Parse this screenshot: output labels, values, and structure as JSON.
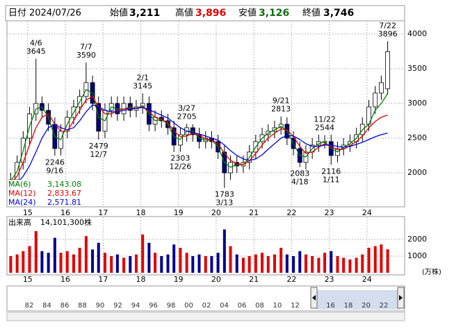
{
  "header": {
    "date_label": "日付",
    "date": "2024/07/26",
    "open_label": "始値",
    "open": "3,211",
    "high_label": "高値",
    "high": "3,896",
    "low_label": "安値",
    "low": "3,126",
    "close_label": "終値",
    "close": "3,746",
    "high_color": "#e00000",
    "low_color": "#107010"
  },
  "chart_data": {
    "type": "candlestick",
    "x": [
      2014.55,
      2014.72,
      2014.88,
      2015.05,
      2015.22,
      2015.38,
      2015.55,
      2015.72,
      2015.88,
      2016.05,
      2016.22,
      2016.38,
      2016.55,
      2016.72,
      2016.88,
      2017.05,
      2017.22,
      2017.38,
      2017.55,
      2017.72,
      2017.88,
      2018.05,
      2018.22,
      2018.38,
      2018.55,
      2018.72,
      2018.88,
      2019.05,
      2019.22,
      2019.38,
      2019.55,
      2019.72,
      2019.88,
      2020.05,
      2020.22,
      2020.38,
      2020.55,
      2020.72,
      2020.88,
      2021.05,
      2021.22,
      2021.38,
      2021.55,
      2021.72,
      2021.88,
      2022.05,
      2022.22,
      2022.38,
      2022.55,
      2022.72,
      2022.88,
      2023.05,
      2023.22,
      2023.38,
      2023.55,
      2023.72,
      2023.88,
      2024.05,
      2024.22,
      2024.38,
      2024.55
    ],
    "open": [
      1850,
      1900,
      2150,
      2500,
      2850,
      3000,
      2900,
      2700,
      2350,
      2600,
      2800,
      2950,
      3100,
      3300,
      3000,
      2600,
      2900,
      3000,
      2850,
      3000,
      2900,
      2950,
      3000,
      2700,
      2800,
      2750,
      2650,
      2400,
      2550,
      2650,
      2550,
      2450,
      2500,
      2450,
      2300,
      2000,
      2150,
      2100,
      2150,
      2300,
      2450,
      2550,
      2600,
      2650,
      2700,
      2500,
      2350,
      2150,
      2300,
      2400,
      2450,
      2450,
      2250,
      2350,
      2400,
      2450,
      2550,
      2700,
      2950,
      3150,
      3211
    ],
    "high": [
      2000,
      2250,
      2600,
      2950,
      3645,
      3100,
      3000,
      2800,
      2700,
      2900,
      3050,
      3200,
      3590,
      3400,
      3100,
      3000,
      3100,
      3100,
      3100,
      3100,
      3050,
      3145,
      3100,
      2900,
      2900,
      2850,
      2750,
      2650,
      2705,
      2700,
      2650,
      2600,
      2600,
      2550,
      2400,
      2250,
      2250,
      2250,
      2400,
      2550,
      2650,
      2700,
      2750,
      2813,
      2800,
      2600,
      2450,
      2400,
      2500,
      2550,
      2544,
      2550,
      2450,
      2500,
      2550,
      2650,
      2800,
      3050,
      3250,
      3400,
      3896
    ],
    "low": [
      1750,
      1800,
      2050,
      2400,
      2750,
      2800,
      2600,
      2246,
      2250,
      2500,
      2700,
      2850,
      3000,
      2900,
      2479,
      2500,
      2800,
      2750,
      2750,
      2800,
      2800,
      2850,
      2600,
      2600,
      2650,
      2550,
      2300,
      2303,
      2450,
      2450,
      2350,
      2350,
      2350,
      2200,
      1783,
      1900,
      2000,
      2000,
      2050,
      2200,
      2350,
      2450,
      2500,
      2550,
      2400,
      2250,
      2083,
      2050,
      2200,
      2300,
      2350,
      2116,
      2150,
      2250,
      2300,
      2350,
      2450,
      2600,
      2850,
      3050,
      3126
    ],
    "close": [
      1900,
      2150,
      2500,
      2850,
      3000,
      2900,
      2700,
      2350,
      2600,
      2800,
      2950,
      3100,
      3300,
      3000,
      2600,
      2900,
      3000,
      2850,
      3000,
      2900,
      2950,
      3000,
      2700,
      2800,
      2750,
      2650,
      2400,
      2550,
      2650,
      2550,
      2450,
      2500,
      2450,
      2300,
      2000,
      2150,
      2100,
      2150,
      2300,
      2450,
      2550,
      2600,
      2650,
      2700,
      2500,
      2350,
      2150,
      2300,
      2400,
      2450,
      2450,
      2250,
      2350,
      2400,
      2450,
      2550,
      2700,
      2950,
      3150,
      3300,
      3746
    ],
    "up_color": "#ffffff",
    "down_color": "#000080",
    "series": [
      {
        "name": "MA(6)",
        "color": "#008000",
        "latest_label": "3,143.08",
        "values": [
          1880,
          2020,
          2320,
          2670,
          2920,
          2950,
          2800,
          2520,
          2480,
          2700,
          2870,
          3020,
          3200,
          3150,
          2800,
          2750,
          2950,
          2920,
          2920,
          2950,
          2920,
          2970,
          2850,
          2750,
          2770,
          2700,
          2520,
          2480,
          2600,
          2600,
          2500,
          2470,
          2470,
          2380,
          2150,
          2080,
          2120,
          2120,
          2220,
          2370,
          2500,
          2570,
          2620,
          2670,
          2600,
          2420,
          2250,
          2230,
          2350,
          2420,
          2450,
          2350,
          2300,
          2370,
          2420,
          2500,
          2620,
          2700,
          2900,
          3000,
          3143.08
        ]
      },
      {
        "name": "MA(12)",
        "color": "#e00000",
        "latest_label": "2,833.67",
        "values": [
          1850,
          1950,
          2150,
          2400,
          2650,
          2800,
          2850,
          2700,
          2600,
          2600,
          2750,
          2900,
          3050,
          3100,
          2950,
          2850,
          2850,
          2900,
          2920,
          2930,
          2930,
          2950,
          2880,
          2800,
          2770,
          2720,
          2600,
          2520,
          2530,
          2570,
          2540,
          2490,
          2470,
          2420,
          2280,
          2180,
          2130,
          2120,
          2170,
          2280,
          2400,
          2500,
          2570,
          2630,
          2620,
          2520,
          2380,
          2280,
          2300,
          2370,
          2420,
          2380,
          2330,
          2340,
          2390,
          2450,
          2530,
          2650,
          2740,
          2800,
          2833.67
        ]
      },
      {
        "name": "MA(24)",
        "color": "#0000e0",
        "latest_label": "2,571.81",
        "values": [
          1800,
          1850,
          1950,
          2100,
          2300,
          2500,
          2650,
          2700,
          2650,
          2620,
          2650,
          2750,
          2880,
          2980,
          2950,
          2900,
          2880,
          2880,
          2900,
          2920,
          2930,
          2940,
          2910,
          2870,
          2830,
          2790,
          2720,
          2650,
          2600,
          2580,
          2560,
          2530,
          2500,
          2470,
          2400,
          2320,
          2250,
          2200,
          2180,
          2200,
          2260,
          2340,
          2420,
          2500,
          2540,
          2530,
          2480,
          2420,
          2380,
          2380,
          2400,
          2400,
          2380,
          2370,
          2380,
          2410,
          2440,
          2480,
          2520,
          2550,
          2571.81
        ]
      }
    ],
    "ylim": [
      1510,
      4190
    ],
    "yticks": [
      2000,
      2500,
      3000,
      3500,
      4000
    ],
    "xlim": [
      2014.45,
      2025.0
    ],
    "xticks": [
      {
        "value": 2015,
        "label": "15"
      },
      {
        "value": 2016,
        "label": "16"
      },
      {
        "value": 2017,
        "label": "17"
      },
      {
        "value": 2018,
        "label": "18"
      },
      {
        "value": 2019,
        "label": "19"
      },
      {
        "value": 2020,
        "label": "20"
      },
      {
        "value": 2021,
        "label": "21"
      },
      {
        "value": 2022,
        "label": "22"
      },
      {
        "value": 2023,
        "label": "23"
      },
      {
        "value": 2024,
        "label": "24"
      }
    ],
    "grid": true,
    "annotations": [
      {
        "date": "4/6",
        "value": 3645,
        "x": 2015.22,
        "position": "above"
      },
      {
        "date": "7/7",
        "value": 3590,
        "x": 2016.55,
        "position": "above"
      },
      {
        "date": "2/1",
        "value": 3145,
        "x": 2018.05,
        "position": "above"
      },
      {
        "date": "3/27",
        "value": 2705,
        "x": 2019.22,
        "position": "above"
      },
      {
        "date": "9/21",
        "value": 2813,
        "x": 2021.72,
        "position": "above"
      },
      {
        "date": "11/22",
        "value": 2544,
        "x": 2022.88,
        "position": "above"
      },
      {
        "date": "7/22",
        "value": 3896,
        "x": 2024.55,
        "position": "above"
      },
      {
        "date": "9/16",
        "value": 2246,
        "x": 2015.72,
        "position": "below"
      },
      {
        "date": "12/7",
        "value": 2479,
        "x": 2016.88,
        "position": "below"
      },
      {
        "date": "12/26",
        "value": 2303,
        "x": 2019.05,
        "position": "below"
      },
      {
        "date": "3/13",
        "value": 1783,
        "x": 2020.22,
        "position": "below"
      },
      {
        "date": "4/18",
        "value": 2083,
        "x": 2022.22,
        "position": "below"
      },
      {
        "date": "1/11",
        "value": 2116,
        "x": 2023.05,
        "position": "below"
      }
    ],
    "volume": {
      "title": "出来高",
      "latest": "14,101,300株",
      "unit": "(万株)",
      "values": [
        1000,
        1100,
        1300,
        1600,
        2500,
        1300,
        1200,
        2100,
        1200,
        1300,
        1100,
        1500,
        2200,
        1400,
        1800,
        1200,
        1000,
        1100,
        900,
        1000,
        1100,
        2300,
        1800,
        1200,
        1000,
        1100,
        1700,
        1500,
        1200,
        1000,
        1100,
        1000,
        1000,
        1200,
        2600,
        1600,
        1100,
        900,
        1000,
        1100,
        1200,
        1000,
        1100,
        1500,
        1100,
        1000,
        1300,
        1100,
        1000,
        900,
        1200,
        1300,
        1000,
        900,
        800,
        900,
        1100,
        1500,
        1600,
        1700,
        1410.13
      ],
      "up_color": "#e00000",
      "down_color": "#000090",
      "ylim": [
        0,
        3333
      ],
      "yticks": [
        1000,
        2000
      ]
    },
    "navigator": {
      "labels": [
        "82",
        "84",
        "86",
        "88",
        "90",
        "92",
        "94",
        "96",
        "98",
        "00",
        "02",
        "04",
        "06",
        "08",
        "10",
        "12",
        null,
        "16",
        "18",
        "20",
        "22"
      ]
    }
  }
}
